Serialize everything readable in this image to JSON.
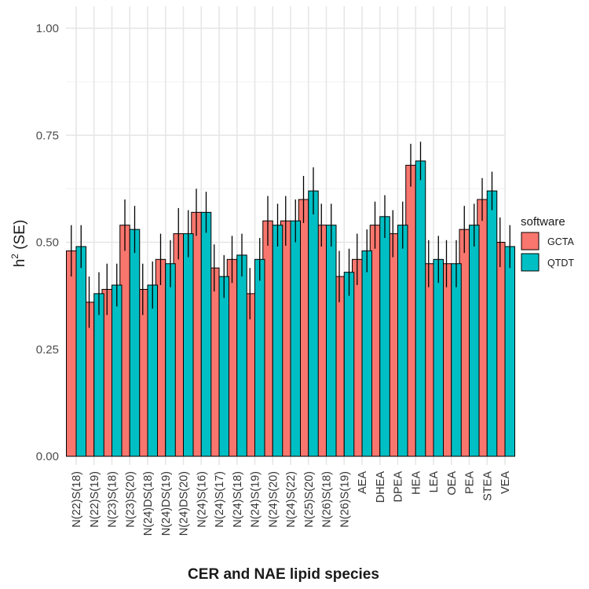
{
  "chart_data": {
    "type": "bar",
    "xlabel": "CER and NAE lipid species",
    "ylabel": "h",
    "ylabel_sup": "2",
    "ylabel_suffix": " (SE)",
    "ylim": [
      0,
      1.0
    ],
    "yticks": [
      "0.00",
      "0.25",
      "0.50",
      "0.75",
      "1.00"
    ],
    "grid": true,
    "legend": {
      "title": "software",
      "position": "right"
    },
    "categories": [
      "N(22)S(18)",
      "N(22)S(19)",
      "N(23)S(18)",
      "N(23)S(20)",
      "N(24)DS(18)",
      "N(24)DS(19)",
      "N(24)DS(20)",
      "N(24)S(16)",
      "N(24)S(17)",
      "N(24)S(18)",
      "N(24)S(19)",
      "N(24)S(20)",
      "N(24)S(22)",
      "N(25)S(20)",
      "N(26)S(18)",
      "N(26)S(19)",
      "AEA",
      "DHEA",
      "DPEA",
      "HEA",
      "LEA",
      "OEA",
      "PEA",
      "STEA",
      "VEA"
    ],
    "series": [
      {
        "name": "GCTA",
        "color": "#F8766D",
        "values": [
          0.48,
          0.36,
          0.39,
          0.54,
          0.39,
          0.46,
          0.52,
          0.57,
          0.44,
          0.46,
          0.38,
          0.55,
          0.55,
          0.6,
          0.54,
          0.42,
          0.46,
          0.54,
          0.52,
          0.68,
          0.45,
          0.45,
          0.53,
          0.6,
          0.5
        ],
        "errors": [
          0.06,
          0.06,
          0.06,
          0.06,
          0.06,
          0.06,
          0.06,
          0.055,
          0.055,
          0.055,
          0.06,
          0.058,
          0.058,
          0.055,
          0.05,
          0.06,
          0.06,
          0.055,
          0.055,
          0.05,
          0.055,
          0.055,
          0.055,
          0.05,
          0.058
        ]
      },
      {
        "name": "QTDT",
        "color": "#00BFC4",
        "values": [
          0.49,
          0.38,
          0.4,
          0.53,
          0.4,
          0.45,
          0.52,
          0.57,
          0.42,
          0.47,
          0.46,
          0.54,
          0.55,
          0.62,
          0.54,
          0.43,
          0.48,
          0.56,
          0.54,
          0.69,
          0.46,
          0.45,
          0.54,
          0.62,
          0.49
        ],
        "errors": [
          0.05,
          0.05,
          0.05,
          0.055,
          0.055,
          0.055,
          0.055,
          0.048,
          0.05,
          0.05,
          0.05,
          0.05,
          0.05,
          0.055,
          0.05,
          0.055,
          0.05,
          0.05,
          0.055,
          0.045,
          0.055,
          0.055,
          0.05,
          0.045,
          0.05
        ]
      }
    ]
  }
}
